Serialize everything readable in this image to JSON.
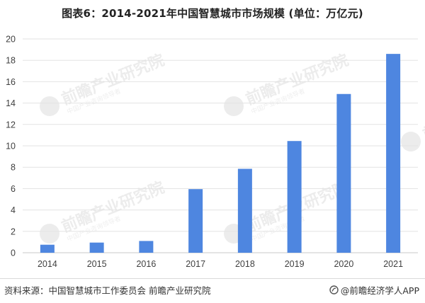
{
  "title": "图表6：2014-2021年中国智慧城市市场规模 (单位：万亿元)",
  "footer": {
    "source": "资料来源：中国智慧城市工作委员会 前瞻产业研究院",
    "brand": "@前瞻经济学人APP"
  },
  "watermark": {
    "text": "前瞻产业研究院",
    "subtext": "中国产业咨询领导者"
  },
  "colors": {
    "bar": "#4e86e0",
    "grid": "#e3e3e3",
    "axis": "#c8c8c8",
    "tick_text": "#404040"
  },
  "chart_data": {
    "type": "bar",
    "title": "图表6：2014-2021年中国智慧城市市场规模 (单位：万亿元)",
    "xlabel": "",
    "ylabel": "",
    "categories": [
      "2014",
      "2015",
      "2016",
      "2017",
      "2018",
      "2019",
      "2020",
      "2021"
    ],
    "values": [
      0.75,
      0.95,
      1.1,
      5.95,
      7.85,
      10.45,
      14.85,
      18.6
    ],
    "ylim": [
      0,
      20
    ],
    "yticks": [
      0,
      2,
      4,
      6,
      8,
      10,
      12,
      14,
      16,
      18,
      20
    ],
    "grid": true,
    "legend": "none"
  }
}
